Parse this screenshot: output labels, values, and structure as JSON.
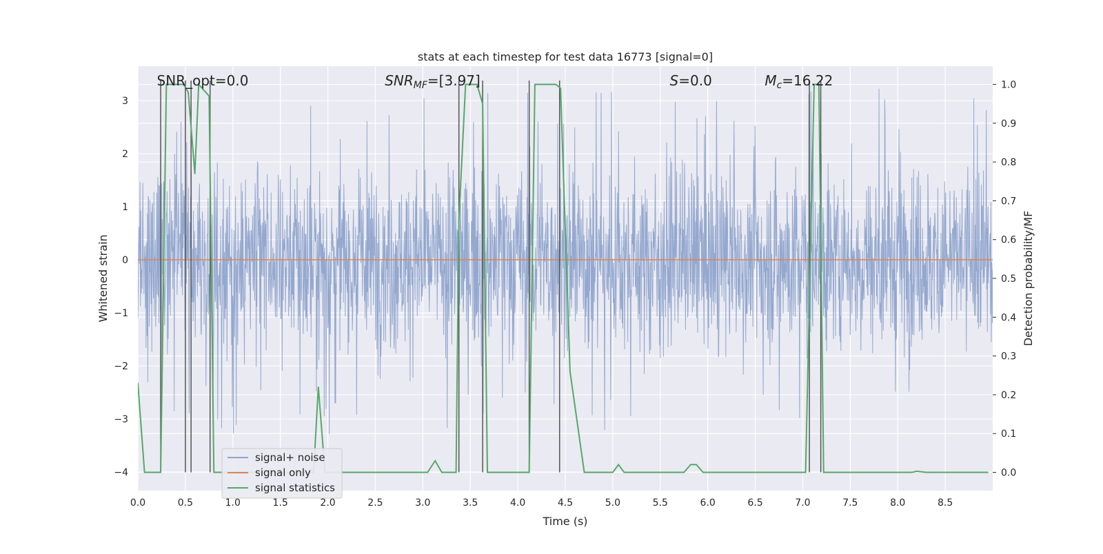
{
  "chart_data": {
    "type": "line",
    "title": "stats at each timestep for test data 16773 [signal=0]",
    "xlabel": "Time (s)",
    "ylabel_left": "Whitened strain",
    "ylabel_right": "Detection probability/MF",
    "xlim": [
      0.0,
      9.0
    ],
    "ylim_left": [
      -4.35,
      3.65
    ],
    "ylim_right": [
      -0.047,
      1.047
    ],
    "x_ticks": [
      0.0,
      0.5,
      1.0,
      1.5,
      2.0,
      2.5,
      3.0,
      3.5,
      4.0,
      4.5,
      5.0,
      5.5,
      6.0,
      6.5,
      7.0,
      7.5,
      8.0,
      8.5
    ],
    "x_tick_labels": [
      "0.0",
      "0.5",
      "1.0",
      "1.5",
      "2.0",
      "2.5",
      "3.0",
      "3.5",
      "4.0",
      "4.5",
      "5.0",
      "5.5",
      "6.0",
      "6.5",
      "7.0",
      "7.5",
      "8.0",
      "8.5"
    ],
    "y_left_ticks": [
      3,
      2,
      1,
      0,
      -1,
      -2,
      -3,
      -4
    ],
    "y_left_tick_labels": [
      "3",
      "2",
      "1",
      "0",
      "−1",
      "−2",
      "−3",
      "−4"
    ],
    "y_right_ticks": [
      1.0,
      0.9,
      0.8,
      0.7,
      0.6,
      0.5,
      0.4,
      0.3,
      0.2,
      0.1,
      0.0
    ],
    "y_right_tick_labels": [
      "1.0",
      "0.9",
      "0.8",
      "0.7",
      "0.6",
      "0.5",
      "0.4",
      "0.3",
      "0.2",
      "0.1",
      "0.0"
    ],
    "grid": true,
    "annotations": [
      {
        "text": "SNR_opt=0.0",
        "x": 0.2
      },
      {
        "text": "SNR_MF=[3.97]",
        "x": 2.6
      },
      {
        "text": "S=0.0",
        "x": 5.6
      },
      {
        "text": "M_c=16.22",
        "x": 6.6
      }
    ],
    "legend": {
      "position": "lower-left",
      "entries": [
        {
          "label": "signal+ noise",
          "color": "#8fa4cc"
        },
        {
          "label": "signal only",
          "color": "#dd8452"
        },
        {
          "label": "signal statistics",
          "color": "#55a868"
        }
      ]
    },
    "series": [
      {
        "name": "signal+ noise",
        "axis": "left",
        "color": "#8fa4cc",
        "description": "whitened strain noise, approx. range -2 to 2 with spikes near +/-3",
        "noise_std": 0.85,
        "spike_low": -4.0,
        "spike_high": 3.3
      },
      {
        "name": "signal only",
        "axis": "left",
        "color": "#dd8452",
        "x": [
          0.0,
          9.0
        ],
        "y": [
          0.0,
          0.0
        ]
      },
      {
        "name": "signal statistics",
        "axis": "right",
        "color": "#55a868",
        "x": [
          0.0,
          0.07,
          0.24,
          0.3,
          0.48,
          0.53,
          0.6,
          0.64,
          0.75,
          0.8,
          1.85,
          1.9,
          1.97,
          3.05,
          3.13,
          3.2,
          3.35,
          3.38,
          3.45,
          3.57,
          3.63,
          3.68,
          4.12,
          4.18,
          4.4,
          4.45,
          4.55,
          4.7,
          5.0,
          5.06,
          5.12,
          5.2,
          5.75,
          5.82,
          5.88,
          5.95,
          7.03,
          7.12,
          7.17,
          7.22,
          8.15,
          8.2,
          8.3,
          8.95
        ],
        "y": [
          0.23,
          0.0,
          0.0,
          1.0,
          1.0,
          0.98,
          0.77,
          1.0,
          0.97,
          0.0,
          0.0,
          0.22,
          0.0,
          0.0,
          0.03,
          0.0,
          0.0,
          0.65,
          1.0,
          1.0,
          0.95,
          0.0,
          0.0,
          1.0,
          1.0,
          0.99,
          0.26,
          0.0,
          0.0,
          0.02,
          0.0,
          0.0,
          0.0,
          0.02,
          0.02,
          0.0,
          0.0,
          1.0,
          1.0,
          0.0,
          0.0,
          0.003,
          0.0,
          0.0
        ]
      }
    ],
    "vertical_markers_x": [
      0.24,
      0.5,
      0.56,
      0.76,
      3.38,
      3.63,
      4.12,
      4.44,
      7.07,
      7.19
    ]
  }
}
